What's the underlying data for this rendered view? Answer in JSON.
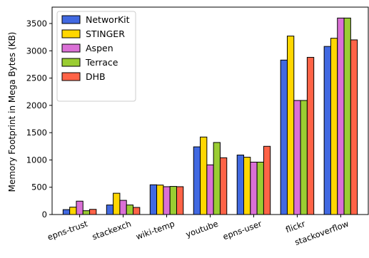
{
  "chart_data": {
    "type": "bar",
    "title": "",
    "xlabel": "",
    "ylabel": "Memory Footprint in Mega Bytes (KB)",
    "categories": [
      "epns-trust",
      "stackexch",
      "wiki-temp",
      "youtube",
      "epns-user",
      "flickr",
      "stackoverflow"
    ],
    "series": [
      {
        "name": "NetworKit",
        "color": "#4169e1",
        "values": [
          90,
          175,
          545,
          1240,
          1090,
          2830,
          3080
        ]
      },
      {
        "name": "STINGER",
        "color": "#ffd700",
        "values": [
          135,
          390,
          540,
          1420,
          1050,
          3270,
          3230
        ]
      },
      {
        "name": "Aspen",
        "color": "#da70d6",
        "values": [
          245,
          260,
          510,
          910,
          960,
          2090,
          3600
        ]
      },
      {
        "name": "Terrace",
        "color": "#9acd32",
        "values": [
          70,
          175,
          515,
          1320,
          960,
          2090,
          3600
        ]
      },
      {
        "name": "DHB",
        "color": "#ff6347",
        "values": [
          95,
          130,
          510,
          1040,
          1250,
          2880,
          3200
        ]
      }
    ],
    "yticks": [
      0,
      500,
      1000,
      1500,
      2000,
      2500,
      3000,
      3500
    ],
    "ylim": [
      0,
      3800
    ],
    "legend_position": "upper-left",
    "grid": false
  }
}
